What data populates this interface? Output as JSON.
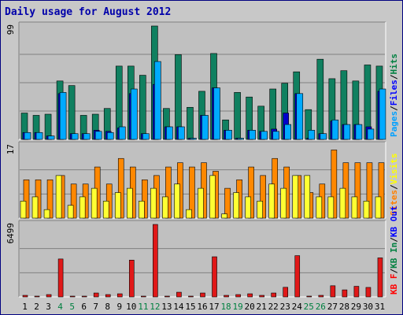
{
  "chart_data": {
    "type": "bar",
    "title": "Daily usage for August 2012",
    "days": [
      "1",
      "2",
      "3",
      "4",
      "5",
      "6",
      "7",
      "8",
      "9",
      "10",
      "11",
      "12",
      "13",
      "14",
      "15",
      "16",
      "17",
      "18",
      "19",
      "20",
      "21",
      "22",
      "23",
      "24",
      "25",
      "26",
      "27",
      "28",
      "29",
      "30",
      "31"
    ],
    "weekend_days": [
      "4",
      "5",
      "11",
      "12",
      "18",
      "19",
      "25",
      "26"
    ],
    "panels": [
      {
        "id": "top",
        "max_label": "99",
        "ymax": 99,
        "legend": [
          {
            "label": "Pages",
            "color": "#00a0ff"
          },
          {
            "label": "Files",
            "color": "#0000ff"
          },
          {
            "label": "Hits",
            "color": "#008040"
          }
        ],
        "series": [
          {
            "name": "Hits",
            "color": "#108060",
            "values": [
              23,
              21,
              22,
              51,
              47,
              21,
              22,
              27,
              64,
              64,
              56,
              99,
              27,
              74,
              28,
              42,
              75,
              17,
              41,
              37,
              29,
              44,
              49,
              59,
              26,
              70,
              53,
              60,
              51,
              65,
              64
            ]
          },
          {
            "name": "Files",
            "color": "#0000cc",
            "values": [
              6,
              6,
              3,
              40,
              5,
              5,
              8,
              7,
              10,
              40,
              5,
              48,
              11,
              11,
              1,
              21,
              45,
              8,
              1,
              8,
              7,
              9,
              23,
              40,
              1,
              5,
              16,
              13,
              13,
              11,
              42
            ]
          },
          {
            "name": "Pages",
            "color": "#00aaff",
            "values": [
              6,
              6,
              3,
              41,
              5,
              5,
              7,
              6,
              11,
              44,
              5,
              68,
              11,
              11,
              1,
              21,
              45,
              8,
              1,
              8,
              7,
              7,
              13,
              40,
              8,
              5,
              17,
              13,
              13,
              9,
              44
            ]
          }
        ]
      },
      {
        "id": "middle",
        "max_label": "17",
        "ymax": 17,
        "legend": [
          {
            "label": "Sites",
            "color": "#ff8000"
          },
          {
            "label": "Visits",
            "color": "#ffff00"
          }
        ],
        "series": [
          {
            "name": "Sites",
            "color": "#ff8800",
            "values": [
              9,
              9,
              9,
              10,
              8,
              8,
              12,
              8,
              14,
              12,
              9,
              10,
              12,
              13,
              12,
              13,
              11,
              7,
              9,
              12,
              10,
              14,
              12,
              10,
              6,
              8,
              16,
              13,
              13,
              13,
              13
            ]
          },
          {
            "name": "Visits",
            "color": "#ffff33",
            "values": [
              4,
              5,
              2,
              10,
              3,
              5,
              7,
              4,
              6,
              7,
              4,
              7,
              5,
              8,
              2,
              7,
              10,
              1,
              6,
              5,
              4,
              8,
              7,
              10,
              10,
              5,
              5,
              7,
              5,
              4,
              5
            ]
          }
        ]
      },
      {
        "id": "bottom",
        "max_label": "6499",
        "ymax": 6499,
        "legend": [
          {
            "label": "KB F",
            "color": "#ff0000"
          },
          {
            "label": "KB In",
            "color": "#008040"
          },
          {
            "label": "KB Out",
            "color": "#0000ff"
          }
        ],
        "series": [
          {
            "name": "KB F",
            "color": "#e01818",
            "values": [
              140,
              70,
              210,
              3400,
              70,
              70,
              350,
              210,
              280,
              3300,
              70,
              6499,
              70,
              420,
              70,
              350,
              3600,
              140,
              210,
              280,
              140,
              350,
              860,
              3700,
              70,
              140,
              1000,
              630,
              950,
              850,
              3500
            ]
          }
        ]
      }
    ],
    "legend_separator": "/"
  }
}
